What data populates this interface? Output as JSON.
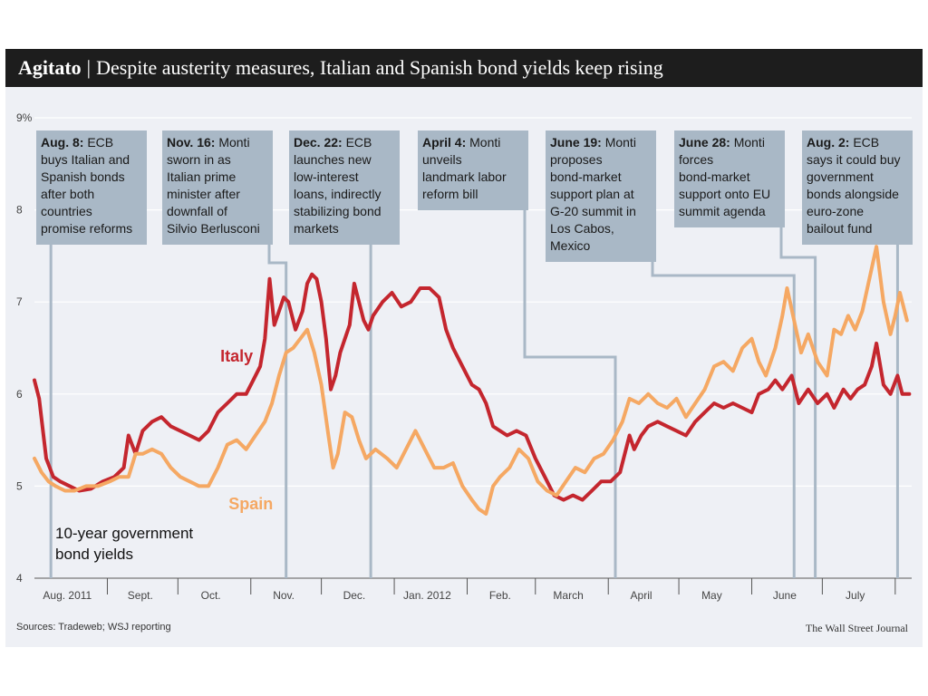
{
  "header": {
    "kicker": "Agitato",
    "separator": "|",
    "headline": "Despite austerity measures, Italian and Spanish bond yields keep rising"
  },
  "footer": {
    "source": "Sources: Tradeweb; WSJ reporting",
    "credit": "The Wall Street Journal"
  },
  "colors": {
    "italy": "#c4262e",
    "spain": "#f5a863",
    "annotation_box": "#a9b8c6",
    "annotation_line": "#a9b8c6",
    "plot_bg": "#eef0f5",
    "grid": "#ffffff",
    "title_bar": "#1d1d1d"
  },
  "chart_data": {
    "type": "line",
    "title": "Despite austerity measures, Italian and Spanish bond yields keep rising",
    "subject_label": [
      "10-year government",
      "bond yields"
    ],
    "ylim": [
      4,
      9
    ],
    "y_ticks": [
      {
        "value": 4,
        "label": "4"
      },
      {
        "value": 5,
        "label": "5"
      },
      {
        "value": 6,
        "label": "6"
      },
      {
        "value": 7,
        "label": "7"
      },
      {
        "value": 8,
        "label": "8"
      },
      {
        "value": 9,
        "label": "9%"
      }
    ],
    "x_range": [
      "2011-08-01",
      "2012-08-08"
    ],
    "x_tick_labels": [
      {
        "date": "2011-08-15",
        "label": "Aug. 2011"
      },
      {
        "date": "2011-09-15",
        "label": "Sept."
      },
      {
        "date": "2011-10-15",
        "label": "Oct."
      },
      {
        "date": "2011-11-15",
        "label": "Nov."
      },
      {
        "date": "2011-12-15",
        "label": "Dec."
      },
      {
        "date": "2012-01-15",
        "label": "Jan. 2012"
      },
      {
        "date": "2012-02-15",
        "label": "Feb."
      },
      {
        "date": "2012-03-15",
        "label": "March"
      },
      {
        "date": "2012-04-15",
        "label": "April"
      },
      {
        "date": "2012-05-15",
        "label": "May"
      },
      {
        "date": "2012-06-15",
        "label": "June"
      },
      {
        "date": "2012-07-15",
        "label": "July"
      }
    ],
    "month_dividers": [
      "2011-09-01",
      "2011-10-01",
      "2011-11-01",
      "2011-12-01",
      "2012-01-01",
      "2012-02-01",
      "2012-03-01",
      "2012-04-01",
      "2012-05-01",
      "2012-06-01",
      "2012-07-01",
      "2012-08-01"
    ],
    "series": [
      {
        "name": "Italy",
        "color": "#c4262e",
        "points": [
          [
            "2011-08-01",
            6.15
          ],
          [
            "2011-08-03",
            5.95
          ],
          [
            "2011-08-06",
            5.3
          ],
          [
            "2011-08-09",
            5.1
          ],
          [
            "2011-08-12",
            5.05
          ],
          [
            "2011-08-16",
            5.0
          ],
          [
            "2011-08-20",
            4.95
          ],
          [
            "2011-08-25",
            4.97
          ],
          [
            "2011-08-30",
            5.05
          ],
          [
            "2011-09-04",
            5.1
          ],
          [
            "2011-09-08",
            5.2
          ],
          [
            "2011-09-10",
            5.55
          ],
          [
            "2011-09-13",
            5.35
          ],
          [
            "2011-09-16",
            5.6
          ],
          [
            "2011-09-20",
            5.7
          ],
          [
            "2011-09-24",
            5.75
          ],
          [
            "2011-09-28",
            5.65
          ],
          [
            "2011-10-02",
            5.6
          ],
          [
            "2011-10-06",
            5.55
          ],
          [
            "2011-10-10",
            5.5
          ],
          [
            "2011-10-14",
            5.6
          ],
          [
            "2011-10-18",
            5.8
          ],
          [
            "2011-10-22",
            5.9
          ],
          [
            "2011-10-26",
            6.0
          ],
          [
            "2011-10-30",
            6.0
          ],
          [
            "2011-11-02",
            6.15
          ],
          [
            "2011-11-05",
            6.3
          ],
          [
            "2011-11-07",
            6.6
          ],
          [
            "2011-11-09",
            7.25
          ],
          [
            "2011-11-11",
            6.75
          ],
          [
            "2011-11-13",
            6.9
          ],
          [
            "2011-11-15",
            7.05
          ],
          [
            "2011-11-17",
            7.0
          ],
          [
            "2011-11-20",
            6.7
          ],
          [
            "2011-11-23",
            6.9
          ],
          [
            "2011-11-25",
            7.2
          ],
          [
            "2011-11-27",
            7.3
          ],
          [
            "2011-11-29",
            7.25
          ],
          [
            "2011-12-01",
            7.0
          ],
          [
            "2011-12-03",
            6.6
          ],
          [
            "2011-12-05",
            6.05
          ],
          [
            "2011-12-07",
            6.2
          ],
          [
            "2011-12-09",
            6.45
          ],
          [
            "2011-12-11",
            6.6
          ],
          [
            "2011-12-13",
            6.75
          ],
          [
            "2011-12-15",
            7.2
          ],
          [
            "2011-12-17",
            7.0
          ],
          [
            "2011-12-19",
            6.8
          ],
          [
            "2011-12-21",
            6.7
          ],
          [
            "2011-12-23",
            6.85
          ],
          [
            "2011-12-27",
            7.0
          ],
          [
            "2011-12-31",
            7.1
          ],
          [
            "2012-01-04",
            6.95
          ],
          [
            "2012-01-08",
            7.0
          ],
          [
            "2012-01-12",
            7.15
          ],
          [
            "2012-01-16",
            7.15
          ],
          [
            "2012-01-20",
            7.05
          ],
          [
            "2012-01-23",
            6.7
          ],
          [
            "2012-01-26",
            6.5
          ],
          [
            "2012-01-30",
            6.3
          ],
          [
            "2012-02-03",
            6.1
          ],
          [
            "2012-02-06",
            6.05
          ],
          [
            "2012-02-09",
            5.9
          ],
          [
            "2012-02-12",
            5.65
          ],
          [
            "2012-02-15",
            5.6
          ],
          [
            "2012-02-18",
            5.55
          ],
          [
            "2012-02-22",
            5.6
          ],
          [
            "2012-02-26",
            5.55
          ],
          [
            "2012-03-01",
            5.3
          ],
          [
            "2012-03-05",
            5.1
          ],
          [
            "2012-03-09",
            4.9
          ],
          [
            "2012-03-13",
            4.85
          ],
          [
            "2012-03-17",
            4.9
          ],
          [
            "2012-03-21",
            4.85
          ],
          [
            "2012-03-25",
            4.95
          ],
          [
            "2012-03-29",
            5.05
          ],
          [
            "2012-04-02",
            5.05
          ],
          [
            "2012-04-06",
            5.15
          ],
          [
            "2012-04-10",
            5.55
          ],
          [
            "2012-04-12",
            5.4
          ],
          [
            "2012-04-15",
            5.55
          ],
          [
            "2012-04-18",
            5.65
          ],
          [
            "2012-04-22",
            5.7
          ],
          [
            "2012-04-26",
            5.65
          ],
          [
            "2012-04-30",
            5.6
          ],
          [
            "2012-05-04",
            5.55
          ],
          [
            "2012-05-08",
            5.7
          ],
          [
            "2012-05-12",
            5.8
          ],
          [
            "2012-05-16",
            5.9
          ],
          [
            "2012-05-20",
            5.85
          ],
          [
            "2012-05-24",
            5.9
          ],
          [
            "2012-05-28",
            5.85
          ],
          [
            "2012-06-01",
            5.8
          ],
          [
            "2012-06-04",
            6.0
          ],
          [
            "2012-06-08",
            6.05
          ],
          [
            "2012-06-11",
            6.15
          ],
          [
            "2012-06-14",
            6.05
          ],
          [
            "2012-06-18",
            6.2
          ],
          [
            "2012-06-21",
            5.9
          ],
          [
            "2012-06-25",
            6.05
          ],
          [
            "2012-06-29",
            5.9
          ],
          [
            "2012-07-03",
            6.0
          ],
          [
            "2012-07-06",
            5.85
          ],
          [
            "2012-07-10",
            6.05
          ],
          [
            "2012-07-13",
            5.95
          ],
          [
            "2012-07-16",
            6.05
          ],
          [
            "2012-07-19",
            6.1
          ],
          [
            "2012-07-22",
            6.3
          ],
          [
            "2012-07-24",
            6.55
          ],
          [
            "2012-07-27",
            6.1
          ],
          [
            "2012-07-30",
            6.0
          ],
          [
            "2012-08-02",
            6.2
          ],
          [
            "2012-08-04",
            6.0
          ],
          [
            "2012-08-07",
            6.0
          ]
        ]
      },
      {
        "name": "Spain",
        "color": "#f5a863",
        "points": [
          [
            "2011-08-01",
            5.3
          ],
          [
            "2011-08-04",
            5.15
          ],
          [
            "2011-08-07",
            5.05
          ],
          [
            "2011-08-10",
            5.0
          ],
          [
            "2011-08-14",
            4.95
          ],
          [
            "2011-08-18",
            4.95
          ],
          [
            "2011-08-23",
            5.0
          ],
          [
            "2011-08-28",
            5.0
          ],
          [
            "2011-09-02",
            5.05
          ],
          [
            "2011-09-06",
            5.1
          ],
          [
            "2011-09-10",
            5.1
          ],
          [
            "2011-09-13",
            5.35
          ],
          [
            "2011-09-16",
            5.35
          ],
          [
            "2011-09-20",
            5.4
          ],
          [
            "2011-09-24",
            5.35
          ],
          [
            "2011-09-28",
            5.2
          ],
          [
            "2011-10-02",
            5.1
          ],
          [
            "2011-10-06",
            5.05
          ],
          [
            "2011-10-10",
            5.0
          ],
          [
            "2011-10-14",
            5.0
          ],
          [
            "2011-10-18",
            5.2
          ],
          [
            "2011-10-22",
            5.45
          ],
          [
            "2011-10-26",
            5.5
          ],
          [
            "2011-10-30",
            5.4
          ],
          [
            "2011-11-03",
            5.55
          ],
          [
            "2011-11-07",
            5.7
          ],
          [
            "2011-11-10",
            5.9
          ],
          [
            "2011-11-13",
            6.2
          ],
          [
            "2011-11-16",
            6.45
          ],
          [
            "2011-11-19",
            6.5
          ],
          [
            "2011-11-22",
            6.6
          ],
          [
            "2011-11-25",
            6.7
          ],
          [
            "2011-11-28",
            6.45
          ],
          [
            "2011-12-01",
            6.1
          ],
          [
            "2011-12-04",
            5.55
          ],
          [
            "2011-12-06",
            5.2
          ],
          [
            "2011-12-08",
            5.35
          ],
          [
            "2011-12-11",
            5.8
          ],
          [
            "2011-12-14",
            5.75
          ],
          [
            "2011-12-17",
            5.5
          ],
          [
            "2011-12-20",
            5.3
          ],
          [
            "2011-12-24",
            5.4
          ],
          [
            "2011-12-29",
            5.3
          ],
          [
            "2012-01-02",
            5.2
          ],
          [
            "2012-01-06",
            5.4
          ],
          [
            "2012-01-10",
            5.6
          ],
          [
            "2012-01-14",
            5.4
          ],
          [
            "2012-01-18",
            5.2
          ],
          [
            "2012-01-22",
            5.2
          ],
          [
            "2012-01-26",
            5.25
          ],
          [
            "2012-01-30",
            5.0
          ],
          [
            "2012-02-03",
            4.85
          ],
          [
            "2012-02-06",
            4.75
          ],
          [
            "2012-02-09",
            4.7
          ],
          [
            "2012-02-12",
            5.0
          ],
          [
            "2012-02-15",
            5.1
          ],
          [
            "2012-02-19",
            5.2
          ],
          [
            "2012-02-23",
            5.4
          ],
          [
            "2012-02-27",
            5.3
          ],
          [
            "2012-03-02",
            5.05
          ],
          [
            "2012-03-06",
            4.95
          ],
          [
            "2012-03-10",
            4.9
          ],
          [
            "2012-03-14",
            5.05
          ],
          [
            "2012-03-18",
            5.2
          ],
          [
            "2012-03-22",
            5.15
          ],
          [
            "2012-03-26",
            5.3
          ],
          [
            "2012-03-30",
            5.35
          ],
          [
            "2012-04-03",
            5.5
          ],
          [
            "2012-04-07",
            5.7
          ],
          [
            "2012-04-10",
            5.95
          ],
          [
            "2012-04-14",
            5.9
          ],
          [
            "2012-04-18",
            6.0
          ],
          [
            "2012-04-22",
            5.9
          ],
          [
            "2012-04-26",
            5.85
          ],
          [
            "2012-04-30",
            5.95
          ],
          [
            "2012-05-04",
            5.75
          ],
          [
            "2012-05-08",
            5.9
          ],
          [
            "2012-05-12",
            6.05
          ],
          [
            "2012-05-16",
            6.3
          ],
          [
            "2012-05-20",
            6.35
          ],
          [
            "2012-05-24",
            6.25
          ],
          [
            "2012-05-28",
            6.5
          ],
          [
            "2012-06-01",
            6.6
          ],
          [
            "2012-06-04",
            6.35
          ],
          [
            "2012-06-07",
            6.2
          ],
          [
            "2012-06-11",
            6.5
          ],
          [
            "2012-06-14",
            6.85
          ],
          [
            "2012-06-16",
            7.15
          ],
          [
            "2012-06-19",
            6.8
          ],
          [
            "2012-06-22",
            6.45
          ],
          [
            "2012-06-25",
            6.65
          ],
          [
            "2012-06-29",
            6.35
          ],
          [
            "2012-07-03",
            6.2
          ],
          [
            "2012-07-06",
            6.7
          ],
          [
            "2012-07-09",
            6.65
          ],
          [
            "2012-07-12",
            6.85
          ],
          [
            "2012-07-15",
            6.7
          ],
          [
            "2012-07-18",
            6.9
          ],
          [
            "2012-07-21",
            7.25
          ],
          [
            "2012-07-24",
            7.6
          ],
          [
            "2012-07-27",
            7.0
          ],
          [
            "2012-07-30",
            6.65
          ],
          [
            "2012-08-01",
            6.85
          ],
          [
            "2012-08-03",
            7.1
          ],
          [
            "2012-08-06",
            6.8
          ]
        ]
      }
    ],
    "series_labels": [
      {
        "series": "Italy",
        "text": "Italy",
        "date": "2011-10-26",
        "value": 6.35
      },
      {
        "series": "Spain",
        "text": "Spain",
        "date": "2011-11-01",
        "value": 4.75
      }
    ],
    "annotations": [
      {
        "date": "2011-08-08",
        "bold": "Aug. 8:",
        "lines": [
          " ECB",
          "buys Italian and",
          "Spanish bonds",
          "after both",
          "countries",
          "promise reforms"
        ]
      },
      {
        "date": "2011-11-16",
        "bold": "Nov. 16:",
        "lines": [
          " Monti",
          "sworn in as",
          "Italian prime",
          "minister after",
          "downfall of",
          "Silvio Berlusconi"
        ]
      },
      {
        "date": "2011-12-22",
        "bold": "Dec. 22:",
        "lines": [
          " ECB",
          "launches new",
          "low-interest",
          "loans, indirectly",
          "stabilizing bond",
          "markets"
        ]
      },
      {
        "date": "2012-04-04",
        "bold": "April 4:",
        "lines": [
          " Monti",
          "unveils",
          "landmark labor",
          "reform bill"
        ]
      },
      {
        "date": "2012-06-19",
        "bold": "June 19:",
        "lines": [
          " Monti",
          "proposes",
          "bond-market",
          "support plan at",
          "G-20 summit in",
          "Los Cabos,",
          "Mexico"
        ]
      },
      {
        "date": "2012-06-28",
        "bold": "June 28:",
        "lines": [
          " Monti",
          "forces",
          "bond-market",
          "support onto EU",
          "summit agenda"
        ]
      },
      {
        "date": "2012-08-02",
        "bold": "Aug. 2:",
        "lines": [
          " ECB",
          "says it could buy",
          "government",
          "bonds alongside",
          "euro-zone",
          "bailout fund"
        ]
      }
    ],
    "grid": true
  }
}
